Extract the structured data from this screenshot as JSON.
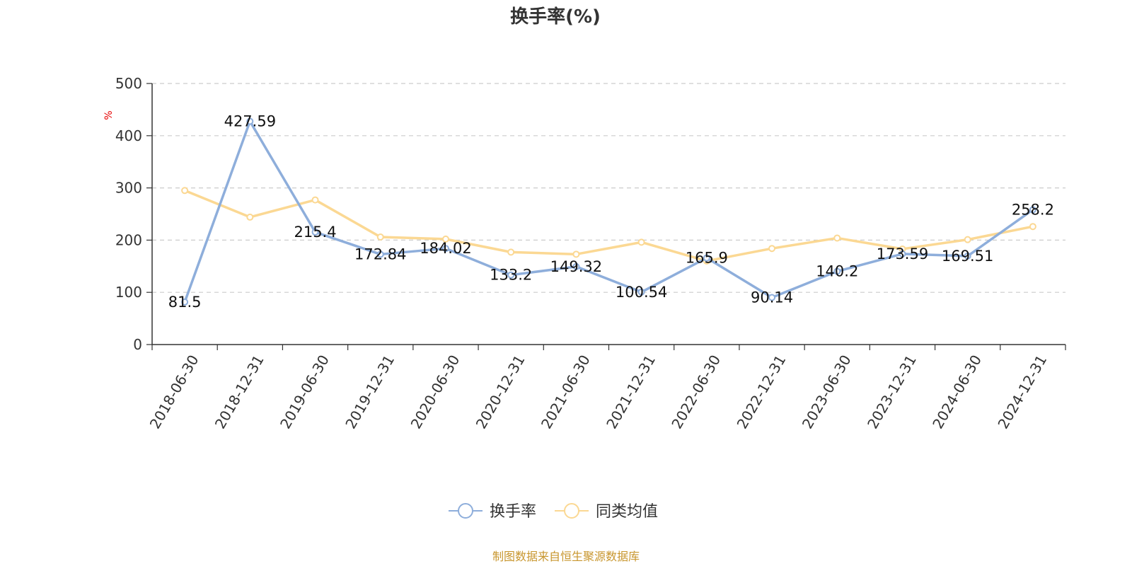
{
  "chart_data": {
    "type": "line",
    "title": "换手率(%)",
    "ylabel": "%",
    "ylim": [
      0,
      500
    ],
    "yticks": [
      0,
      100,
      200,
      300,
      400,
      500
    ],
    "grid": true,
    "categories": [
      "2018-06-30",
      "2018-12-31",
      "2019-06-30",
      "2019-12-31",
      "2020-06-30",
      "2020-12-31",
      "2021-06-30",
      "2021-12-31",
      "2022-06-30",
      "2022-12-31",
      "2023-06-30",
      "2023-12-31",
      "2024-06-30",
      "2024-12-31"
    ],
    "series": [
      {
        "name": "换手率",
        "color": "#8eaedb",
        "values": [
          81.5,
          427.59,
          215.4,
          172.84,
          184.02,
          133.2,
          149.32,
          100.54,
          165.9,
          90.14,
          140.2,
          173.59,
          169.51,
          258.2
        ],
        "labels": [
          "81.5",
          "427.59",
          "215.4",
          "172.84",
          "184.02",
          "133.2",
          "149.32",
          "100.54",
          "165.9",
          "90.14",
          "140.2",
          "173.59",
          "169.51",
          "258.2"
        ]
      },
      {
        "name": "同类均值",
        "color": "#fbd893",
        "values": [
          295,
          244,
          277,
          206,
          202,
          177,
          173,
          196,
          160,
          184,
          204,
          183,
          201,
          226
        ]
      }
    ],
    "legend_position": "bottom-center"
  },
  "source": "制图数据来自恒生聚源数据库"
}
